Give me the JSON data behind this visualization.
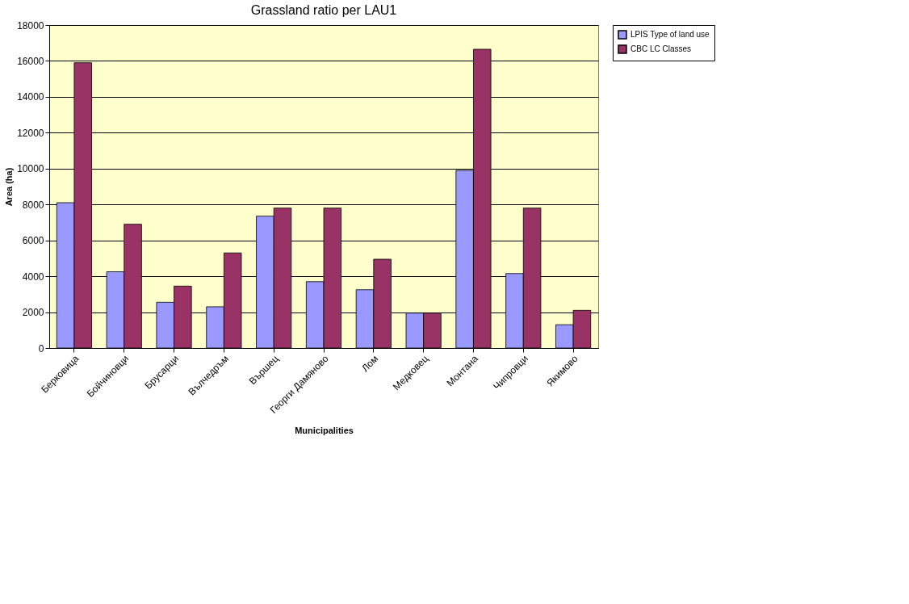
{
  "chart_data": {
    "type": "bar",
    "title": "Grassland ratio per LAU1",
    "xlabel": "Municipalities",
    "ylabel": "Area (ha)",
    "categories": [
      "Берковица",
      "Бойчиновци",
      "Брусарци",
      "Вълчедръм",
      "Вършец",
      "Георги Дамяново",
      "Лом",
      "Медковец",
      "Монтана",
      "Чипровци",
      "Якимово"
    ],
    "series": [
      {
        "name": "LPIS Type of land use",
        "color": "#9999ff",
        "values": [
          8100,
          4250,
          2550,
          2300,
          7350,
          3700,
          3250,
          1950,
          9900,
          4150,
          1300
        ]
      },
      {
        "name": "CBC LC Classes",
        "color": "#993366",
        "values": [
          15900,
          6900,
          3450,
          5300,
          7800,
          7800,
          4950,
          1950,
          16650,
          7800,
          2100
        ]
      }
    ],
    "ylim": [
      0,
      18000
    ],
    "yticks": [
      0,
      2000,
      4000,
      6000,
      8000,
      10000,
      12000,
      14000,
      16000,
      18000
    ],
    "grid": "y",
    "legend": "right"
  }
}
